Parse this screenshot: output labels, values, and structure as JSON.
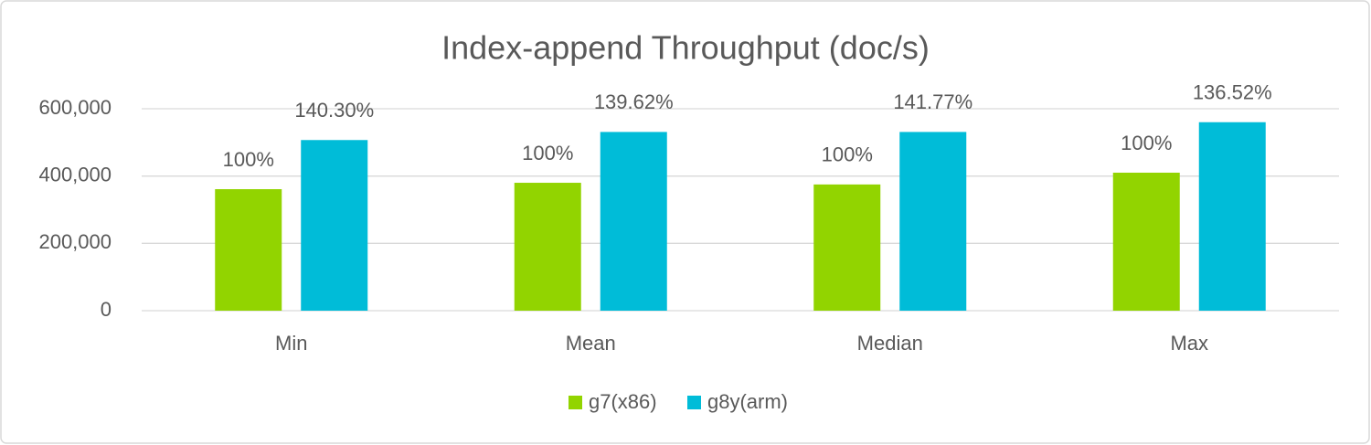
{
  "chart_data": {
    "type": "bar",
    "title": "Index-append Throughput (doc/s)",
    "categories": [
      "Min",
      "Mean",
      "Median",
      "Max"
    ],
    "series": [
      {
        "name": "g7(x86)",
        "color": "#92d400",
        "values": [
          361000,
          380000,
          375000,
          410000
        ],
        "value_labels": [
          "100%",
          "100%",
          "100%",
          "100%"
        ]
      },
      {
        "name": "g8y(arm)",
        "color": "#00bcd8",
        "values": [
          507000,
          531000,
          531000,
          560000
        ],
        "value_labels": [
          "140.30%",
          "139.62%",
          "141.77%",
          "136.52%"
        ]
      }
    ],
    "ylim": [
      0,
      600000
    ],
    "yticks": [
      0,
      {
        "value": 200000,
        "label": "200,000"
      },
      {
        "value": 400000,
        "label": "400,000"
      },
      {
        "value": 600000,
        "label": "600,000"
      }
    ],
    "grid": true,
    "legend": "bottom"
  }
}
